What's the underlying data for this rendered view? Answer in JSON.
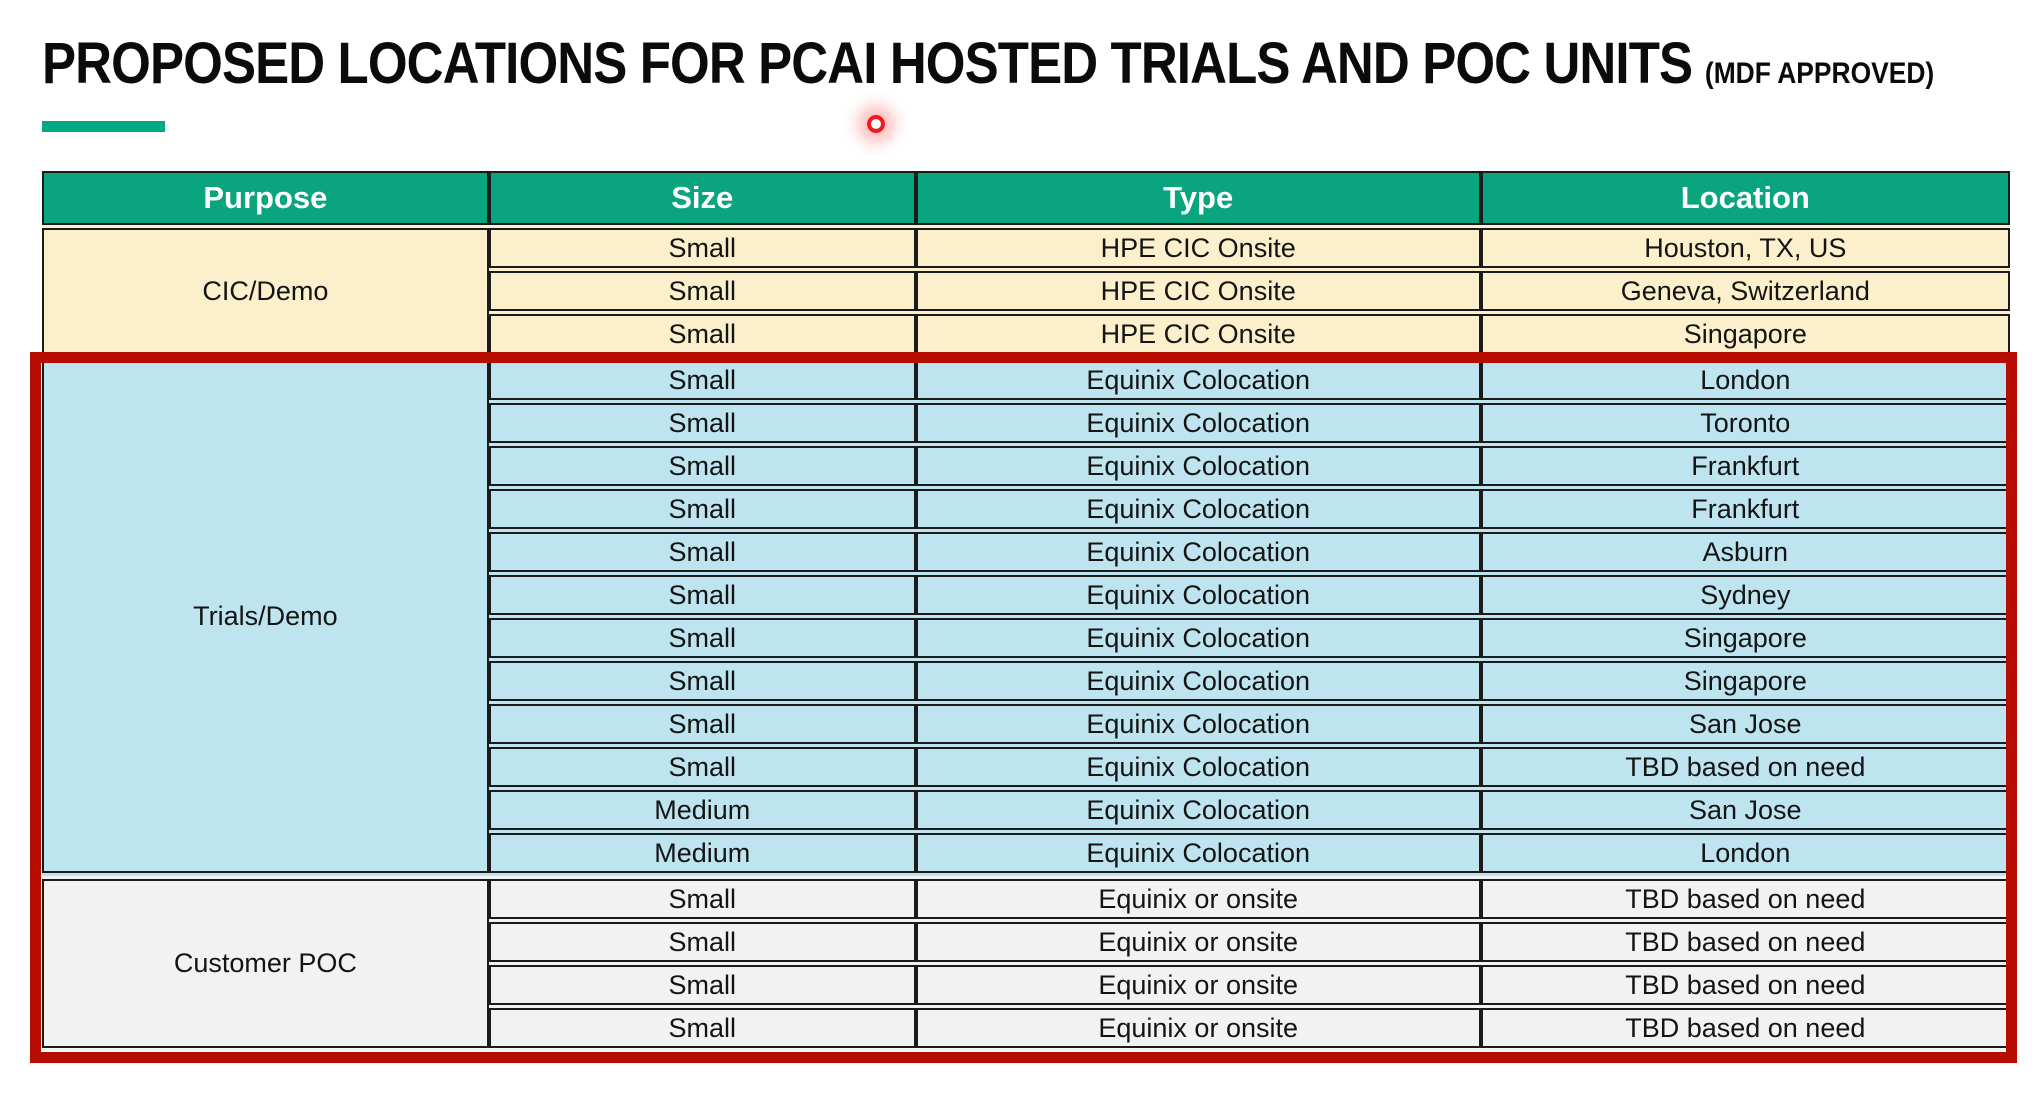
{
  "title": {
    "main": "PROPOSED LOCATIONS FOR PCAI HOSTED TRIALS AND POC UNITS",
    "suffix": "(MDF APPROVED)"
  },
  "colors": {
    "accent_bar": "#01A982",
    "header_bg": "#0AA57E",
    "header_text": "#FFFFFF",
    "cell_border": "#1B1B1B",
    "highlight_border": "#B60D00",
    "laser_dot": "#ED1C24"
  },
  "table": {
    "columns": [
      "Purpose",
      "Size",
      "Type",
      "Location"
    ],
    "sections": [
      {
        "purpose": "CIC/Demo",
        "bg": "#FBF0CB",
        "highlighted": false,
        "rows": [
          [
            "Small",
            "HPE CIC Onsite",
            "Houston, TX, US"
          ],
          [
            "Small",
            "HPE CIC Onsite",
            "Geneva, Switzerland"
          ],
          [
            "Small",
            "HPE CIC Onsite",
            "Singapore"
          ]
        ]
      },
      {
        "purpose": "Trials/Demo",
        "bg": "#BEE4F0",
        "highlighted": true,
        "rows": [
          [
            "Small",
            "Equinix Colocation",
            "London"
          ],
          [
            "Small",
            "Equinix Colocation",
            "Toronto"
          ],
          [
            "Small",
            "Equinix Colocation",
            "Frankfurt"
          ],
          [
            "Small",
            "Equinix Colocation",
            "Frankfurt"
          ],
          [
            "Small",
            "Equinix Colocation",
            "Asburn"
          ],
          [
            "Small",
            "Equinix Colocation",
            "Sydney"
          ],
          [
            "Small",
            "Equinix Colocation",
            "Singapore"
          ],
          [
            "Small",
            "Equinix Colocation",
            "Singapore"
          ],
          [
            "Small",
            "Equinix Colocation",
            "San Jose"
          ],
          [
            "Small",
            "Equinix Colocation",
            "TBD based on need"
          ],
          [
            "Medium",
            "Equinix Colocation",
            "San Jose"
          ],
          [
            "Medium",
            "Equinix Colocation",
            "London"
          ]
        ]
      },
      {
        "purpose": "Customer POC",
        "bg": "#F2F2F2",
        "highlighted": true,
        "rows": [
          [
            "Small",
            "Equinix or onsite",
            "TBD based on need"
          ],
          [
            "Small",
            "Equinix or onsite",
            "TBD based on need"
          ],
          [
            "Small",
            "Equinix or onsite",
            "TBD based on need"
          ],
          [
            "Small",
            "Equinix or onsite",
            "TBD based on need"
          ]
        ]
      }
    ]
  }
}
